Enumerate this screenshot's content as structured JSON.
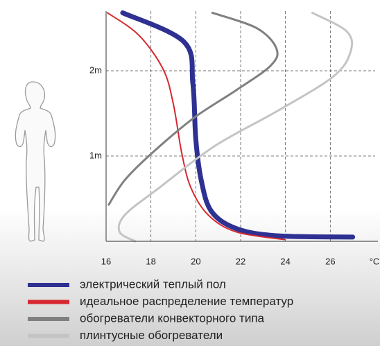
{
  "chart_data": {
    "type": "line",
    "xlabel": "°C",
    "xlim": [
      16,
      28
    ],
    "xticks": [
      16,
      18,
      20,
      22,
      24,
      26
    ],
    "ylim": [
      0,
      2.7
    ],
    "yticks": [
      {
        "value": 1,
        "label": "1m"
      },
      {
        "value": 2,
        "label": "2m"
      }
    ],
    "grid": true,
    "series": [
      {
        "name": "электрический теплый пол",
        "color": "#2e3192",
        "width": 7,
        "x": [
          16.74,
          19.47,
          19.87,
          20.0,
          20.24,
          20.7,
          21.8,
          23.6,
          27.0
        ],
        "values": [
          2.68,
          2.34,
          1.85,
          1.2,
          0.72,
          0.35,
          0.15,
          0.065,
          0.05
        ]
      },
      {
        "name": "идеальное распределение температур",
        "color": "#d7282f",
        "width": 2,
        "x": [
          16.06,
          17.45,
          18.54,
          19.0,
          19.37,
          19.78,
          20.55,
          21.8,
          23.96
        ],
        "values": [
          2.68,
          2.42,
          2.02,
          1.61,
          1.04,
          0.63,
          0.31,
          0.11,
          0.02
        ]
      },
      {
        "name": "обогреватели конвекторного типа",
        "color": "#808080",
        "width": 3,
        "x": [
          20.74,
          22.72,
          23.6,
          23.34,
          21.79,
          19.93,
          18.07,
          16.84,
          16.12
        ],
        "values": [
          2.68,
          2.5,
          2.26,
          2.06,
          1.77,
          1.45,
          1.04,
          0.72,
          0.43
        ]
      },
      {
        "name": "плинтусные обогреватели",
        "color": "#c4c4c4",
        "width": 3,
        "x": [
          25.2,
          26.74,
          26.9,
          26.12,
          23.65,
          20.86,
          18.38,
          16.84,
          16.6,
          17.3
        ],
        "values": [
          2.68,
          2.46,
          2.22,
          1.93,
          1.53,
          1.12,
          0.63,
          0.31,
          0.11,
          0.0
        ]
      }
    ]
  }
}
